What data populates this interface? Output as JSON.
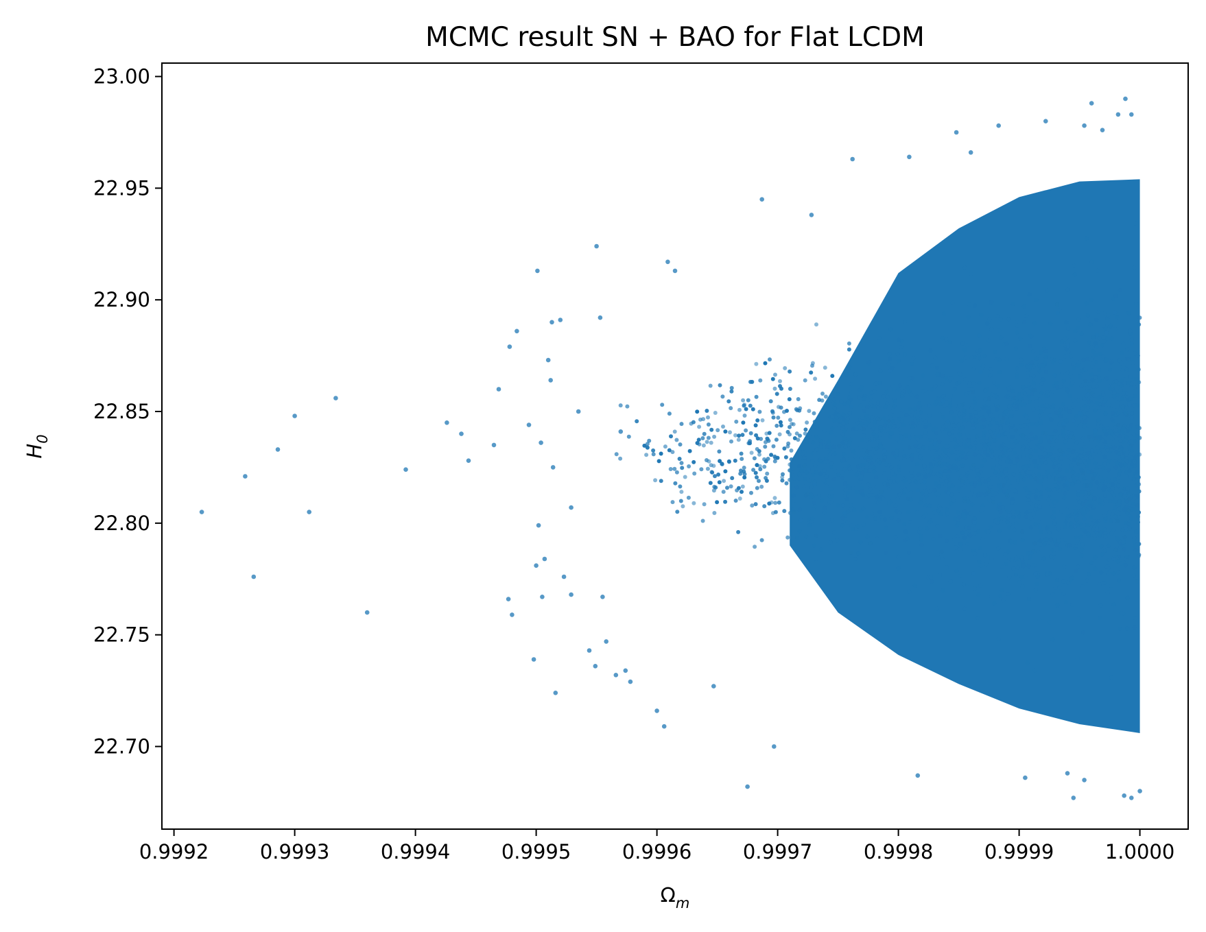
{
  "chart_data": {
    "type": "scatter",
    "title": "MCMC result SN + BAO for Flat LCDM",
    "xlabel": {
      "main": "Ω",
      "sub": "m"
    },
    "ylabel": {
      "main": "H",
      "sub": "0"
    },
    "xlim": [
      0.99919,
      1.00004
    ],
    "ylim": [
      22.663,
      23.006
    ],
    "xticks": [
      {
        "value": 0.9992,
        "label": "0.9992"
      },
      {
        "value": 0.9993,
        "label": "0.9993"
      },
      {
        "value": 0.9994,
        "label": "0.9994"
      },
      {
        "value": 0.9995,
        "label": "0.9995"
      },
      {
        "value": 0.9996,
        "label": "0.9996"
      },
      {
        "value": 0.9997,
        "label": "0.9997"
      },
      {
        "value": 0.9998,
        "label": "0.9998"
      },
      {
        "value": 0.9999,
        "label": "0.9999"
      },
      {
        "value": 1.0,
        "label": "1.0000"
      }
    ],
    "yticks": [
      {
        "value": 22.7,
        "label": "22.70"
      },
      {
        "value": 22.75,
        "label": "22.75"
      },
      {
        "value": 22.8,
        "label": "22.80"
      },
      {
        "value": 22.85,
        "label": "22.85"
      },
      {
        "value": 22.9,
        "label": "22.90"
      },
      {
        "value": 22.95,
        "label": "22.95"
      },
      {
        "value": 23.0,
        "label": "23.00"
      }
    ],
    "grid": false,
    "color": "#1f77b4",
    "series": [
      {
        "points": [
          [
            0.999223,
            22.805
          ],
          [
            0.999259,
            22.821
          ],
          [
            0.999266,
            22.776
          ],
          [
            0.999286,
            22.833
          ],
          [
            0.9993,
            22.848
          ],
          [
            0.999312,
            22.805
          ],
          [
            0.999334,
            22.856
          ],
          [
            0.99936,
            22.76
          ],
          [
            0.999392,
            22.824
          ],
          [
            0.999426,
            22.845
          ],
          [
            0.999438,
            22.84
          ],
          [
            0.999444,
            22.828
          ],
          [
            0.999465,
            22.835
          ],
          [
            0.999469,
            22.86
          ],
          [
            0.999477,
            22.766
          ],
          [
            0.999478,
            22.879
          ],
          [
            0.999484,
            22.886
          ],
          [
            0.99948,
            22.759
          ],
          [
            0.999494,
            22.844
          ],
          [
            0.999498,
            22.739
          ],
          [
            0.9995,
            22.781
          ],
          [
            0.999501,
            22.913
          ],
          [
            0.999502,
            22.799
          ],
          [
            0.999504,
            22.836
          ],
          [
            0.999505,
            22.767
          ],
          [
            0.999507,
            22.784
          ],
          [
            0.99951,
            22.873
          ],
          [
            0.999512,
            22.864
          ],
          [
            0.999513,
            22.89
          ],
          [
            0.999514,
            22.825
          ],
          [
            0.999516,
            22.724
          ],
          [
            0.99952,
            22.891
          ],
          [
            0.999523,
            22.776
          ],
          [
            0.999529,
            22.768
          ],
          [
            0.999529,
            22.807
          ],
          [
            0.999535,
            22.85
          ],
          [
            0.999544,
            22.743
          ],
          [
            0.999549,
            22.736
          ],
          [
            0.99955,
            22.924
          ],
          [
            0.999553,
            22.892
          ],
          [
            0.999555,
            22.767
          ],
          [
            0.999558,
            22.747
          ],
          [
            0.999566,
            22.732
          ],
          [
            0.99957,
            22.841
          ],
          [
            0.999574,
            22.734
          ],
          [
            0.999578,
            22.729
          ],
          [
            0.9996,
            22.716
          ],
          [
            0.999606,
            22.709
          ],
          [
            0.999609,
            22.917
          ],
          [
            0.999615,
            22.913
          ],
          [
            0.999647,
            22.727
          ],
          [
            0.999675,
            22.682
          ],
          [
            0.999687,
            22.945
          ],
          [
            0.999697,
            22.7
          ],
          [
            0.999728,
            22.938
          ],
          [
            0.999762,
            22.963
          ],
          [
            0.999809,
            22.964
          ],
          [
            0.999816,
            22.687
          ],
          [
            0.999848,
            22.975
          ],
          [
            0.99986,
            22.966
          ],
          [
            0.999883,
            22.978
          ],
          [
            0.999922,
            22.98
          ],
          [
            0.99994,
            22.688
          ],
          [
            0.999954,
            22.978
          ],
          [
            0.99996,
            22.988
          ],
          [
            0.999969,
            22.976
          ],
          [
            0.999982,
            22.983
          ],
          [
            0.999988,
            22.99
          ],
          [
            0.999993,
            22.983
          ],
          [
            0.999945,
            22.677
          ],
          [
            0.999987,
            22.678
          ],
          [
            0.999993,
            22.677
          ],
          [
            1.0,
            22.68
          ],
          [
            0.999905,
            22.686
          ],
          [
            0.999954,
            22.685
          ]
        ]
      }
    ]
  }
}
